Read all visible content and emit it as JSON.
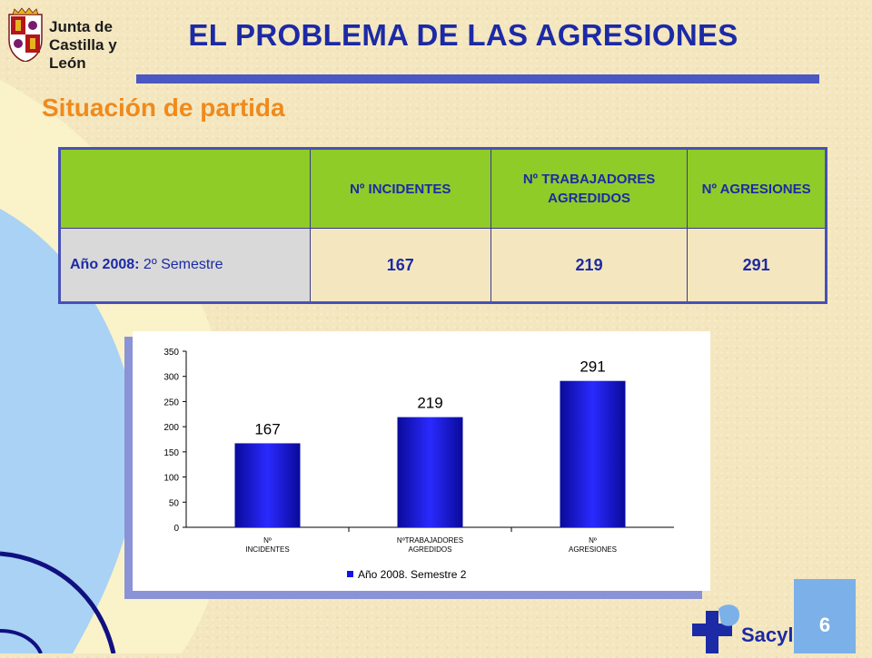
{
  "logo": {
    "line1": "Junta de",
    "line2": "Castilla y León"
  },
  "title": "EL PROBLEMA DE LAS AGRESIONES",
  "subtitle": "Situación de partida",
  "table": {
    "columns": [
      "",
      "Nº INCIDENTES",
      "Nº TRABAJADORES AGREDIDOS",
      "Nº AGRESIONES"
    ],
    "rows": [
      {
        "label_year": "Año 2008:",
        "label_semester": "2º Semestre",
        "values": [
          "167",
          "219",
          "291"
        ]
      }
    ]
  },
  "chart_data": {
    "type": "bar",
    "categories": [
      [
        "Nº",
        "INCIDENTES"
      ],
      [
        "NºTRABAJADORES",
        "AGREDIDOS"
      ],
      [
        "Nº",
        "AGRESIONES"
      ]
    ],
    "series": [
      {
        "name": "Año 2008. Semestre 2",
        "values": [
          167,
          219,
          291
        ]
      }
    ],
    "data_labels": [
      "167",
      "219",
      "291"
    ],
    "yticks": [
      "0",
      "50",
      "100",
      "150",
      "200",
      "250",
      "300",
      "350"
    ],
    "ylim": [
      0,
      350
    ],
    "grid": false,
    "legend": "bottom",
    "bar_color": "#1313e8"
  },
  "brand": "Sacyl",
  "page_number": "6",
  "colors": {
    "title": "#1c2aa6",
    "subtitle": "#f08a1c",
    "header_bg": "#8fcc28",
    "accent_blue": "#4b57c2"
  }
}
